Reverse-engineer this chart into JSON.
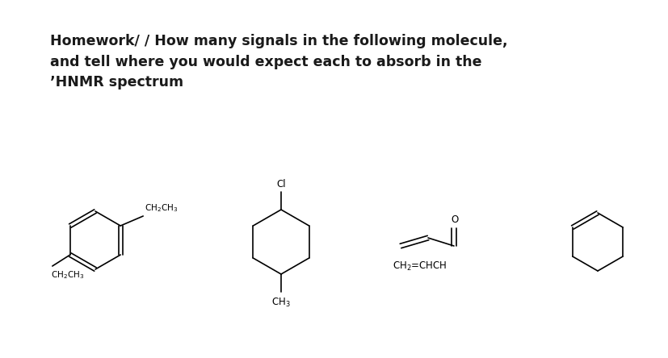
{
  "title_lines": [
    "Homework/ / How many signals in the following molecule,",
    "and tell where you would expect each to absorb in the",
    "ʼHNMR spectrum"
  ],
  "title_fontsize": 12.5,
  "background_color": "#ffffff",
  "fig_width": 8.28,
  "fig_height": 4.44,
  "dpi": 100,
  "lw": 1.2
}
